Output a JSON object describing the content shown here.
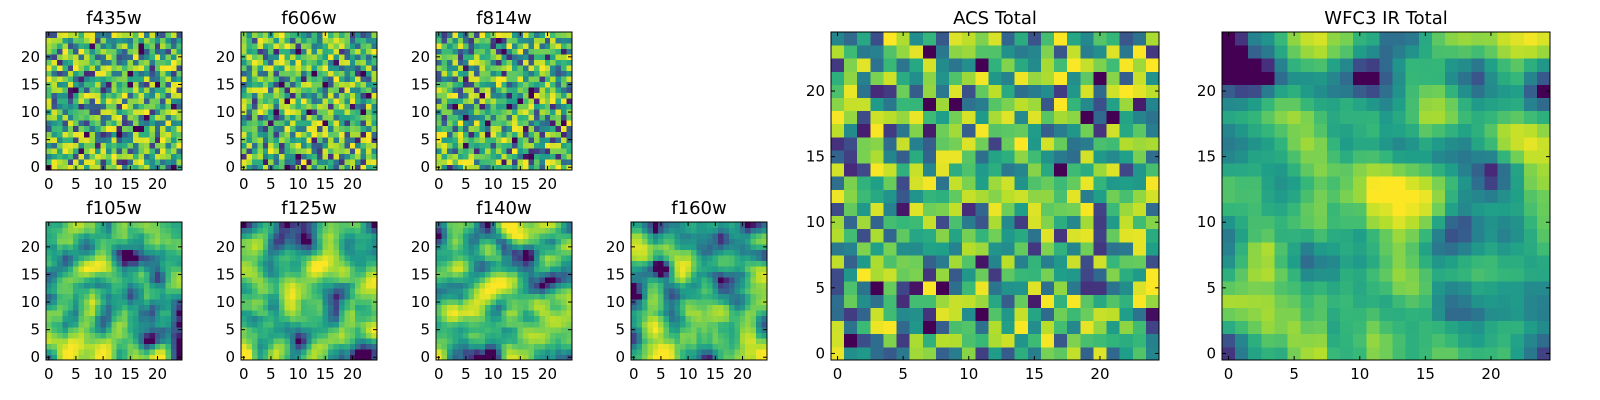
{
  "chart_data": [
    {
      "type": "heatmap",
      "title": "f435w",
      "xlim": [
        -0.5,
        24.5
      ],
      "ylim": [
        -0.5,
        24.5
      ],
      "xticks": [
        0,
        5,
        10,
        15,
        20
      ],
      "yticks": [
        0,
        5,
        10,
        15,
        20
      ],
      "xtick_labels": [
        "0",
        "5",
        "10",
        "15",
        "20"
      ],
      "ytick_labels": [
        "0",
        "5",
        "10",
        "15",
        "20"
      ],
      "grid_size": [
        25,
        25
      ],
      "colormap": "viridis",
      "texture": "pixel noise",
      "seed": 11
    },
    {
      "type": "heatmap",
      "title": "f606w",
      "xlim": [
        -0.5,
        24.5
      ],
      "ylim": [
        -0.5,
        24.5
      ],
      "xticks": [
        0,
        5,
        10,
        15,
        20
      ],
      "yticks": [
        0,
        5,
        10,
        15,
        20
      ],
      "xtick_labels": [
        "0",
        "5",
        "10",
        "15",
        "20"
      ],
      "ytick_labels": [
        "0",
        "5",
        "10",
        "15",
        "20"
      ],
      "grid_size": [
        25,
        25
      ],
      "colormap": "viridis",
      "texture": "pixel noise",
      "seed": 23
    },
    {
      "type": "heatmap",
      "title": "f814w",
      "xlim": [
        -0.5,
        24.5
      ],
      "ylim": [
        -0.5,
        24.5
      ],
      "xticks": [
        0,
        5,
        10,
        15,
        20
      ],
      "yticks": [
        0,
        5,
        10,
        15,
        20
      ],
      "xtick_labels": [
        "0",
        "5",
        "10",
        "15",
        "20"
      ],
      "ytick_labels": [
        "0",
        "5",
        "10",
        "15",
        "20"
      ],
      "grid_size": [
        25,
        25
      ],
      "colormap": "viridis",
      "texture": "pixel noise",
      "seed": 37
    },
    {
      "type": "heatmap",
      "title": "f105w",
      "xlim": [
        -0.5,
        24.5
      ],
      "ylim": [
        -0.5,
        24.5
      ],
      "xticks": [
        0,
        5,
        10,
        15,
        20
      ],
      "yticks": [
        0,
        5,
        10,
        15,
        20
      ],
      "xtick_labels": [
        "0",
        "5",
        "10",
        "15",
        "20"
      ],
      "ytick_labels": [
        "0",
        "5",
        "10",
        "15",
        "20"
      ],
      "grid_size": [
        25,
        25
      ],
      "colormap": "viridis",
      "texture": "smoothed noise",
      "seed": 41
    },
    {
      "type": "heatmap",
      "title": "f125w",
      "xlim": [
        -0.5,
        24.5
      ],
      "ylim": [
        -0.5,
        24.5
      ],
      "xticks": [
        0,
        5,
        10,
        15,
        20
      ],
      "yticks": [
        0,
        5,
        10,
        15,
        20
      ],
      "xtick_labels": [
        "0",
        "5",
        "10",
        "15",
        "20"
      ],
      "ytick_labels": [
        "0",
        "5",
        "10",
        "15",
        "20"
      ],
      "grid_size": [
        25,
        25
      ],
      "colormap": "viridis",
      "texture": "smoothed noise",
      "seed": 53
    },
    {
      "type": "heatmap",
      "title": "f140w",
      "xlim": [
        -0.5,
        24.5
      ],
      "ylim": [
        -0.5,
        24.5
      ],
      "xticks": [
        0,
        5,
        10,
        15,
        20
      ],
      "yticks": [
        0,
        5,
        10,
        15,
        20
      ],
      "xtick_labels": [
        "0",
        "5",
        "10",
        "15",
        "20"
      ],
      "ytick_labels": [
        "0",
        "5",
        "10",
        "15",
        "20"
      ],
      "grid_size": [
        25,
        25
      ],
      "colormap": "viridis",
      "texture": "smoothed noise",
      "seed": 67
    },
    {
      "type": "heatmap",
      "title": "f160w",
      "xlim": [
        -0.5,
        24.5
      ],
      "ylim": [
        -0.5,
        24.5
      ],
      "xticks": [
        0,
        5,
        10,
        15,
        20
      ],
      "yticks": [
        0,
        5,
        10,
        15,
        20
      ],
      "xtick_labels": [
        "0",
        "5",
        "10",
        "15",
        "20"
      ],
      "ytick_labels": [
        "0",
        "5",
        "10",
        "15",
        "20"
      ],
      "grid_size": [
        25,
        25
      ],
      "colormap": "viridis",
      "texture": "smoothed noise",
      "seed": 79
    },
    {
      "type": "heatmap",
      "title": "ACS Total",
      "xlim": [
        -0.5,
        24.5
      ],
      "ylim": [
        -0.5,
        24.5
      ],
      "xticks": [
        0,
        5,
        10,
        15,
        20
      ],
      "yticks": [
        0,
        5,
        10,
        15,
        20
      ],
      "xtick_labels": [
        "0",
        "5",
        "10",
        "15",
        "20"
      ],
      "ytick_labels": [
        "0",
        "5",
        "10",
        "15",
        "20"
      ],
      "grid_size": [
        25,
        25
      ],
      "colormap": "viridis",
      "texture": "pixel noise",
      "seed": 97
    },
    {
      "type": "heatmap",
      "title": "WFC3 IR Total",
      "xlim": [
        -0.5,
        24.5
      ],
      "ylim": [
        -0.5,
        24.5
      ],
      "xticks": [
        0,
        5,
        10,
        15,
        20
      ],
      "yticks": [
        0,
        5,
        10,
        15,
        20
      ],
      "xtick_labels": [
        "0",
        "5",
        "10",
        "15",
        "20"
      ],
      "ytick_labels": [
        "0",
        "5",
        "10",
        "15",
        "20"
      ],
      "grid_size": [
        25,
        25
      ],
      "colormap": "viridis",
      "texture": "smoothed noise",
      "seed": 113
    }
  ]
}
